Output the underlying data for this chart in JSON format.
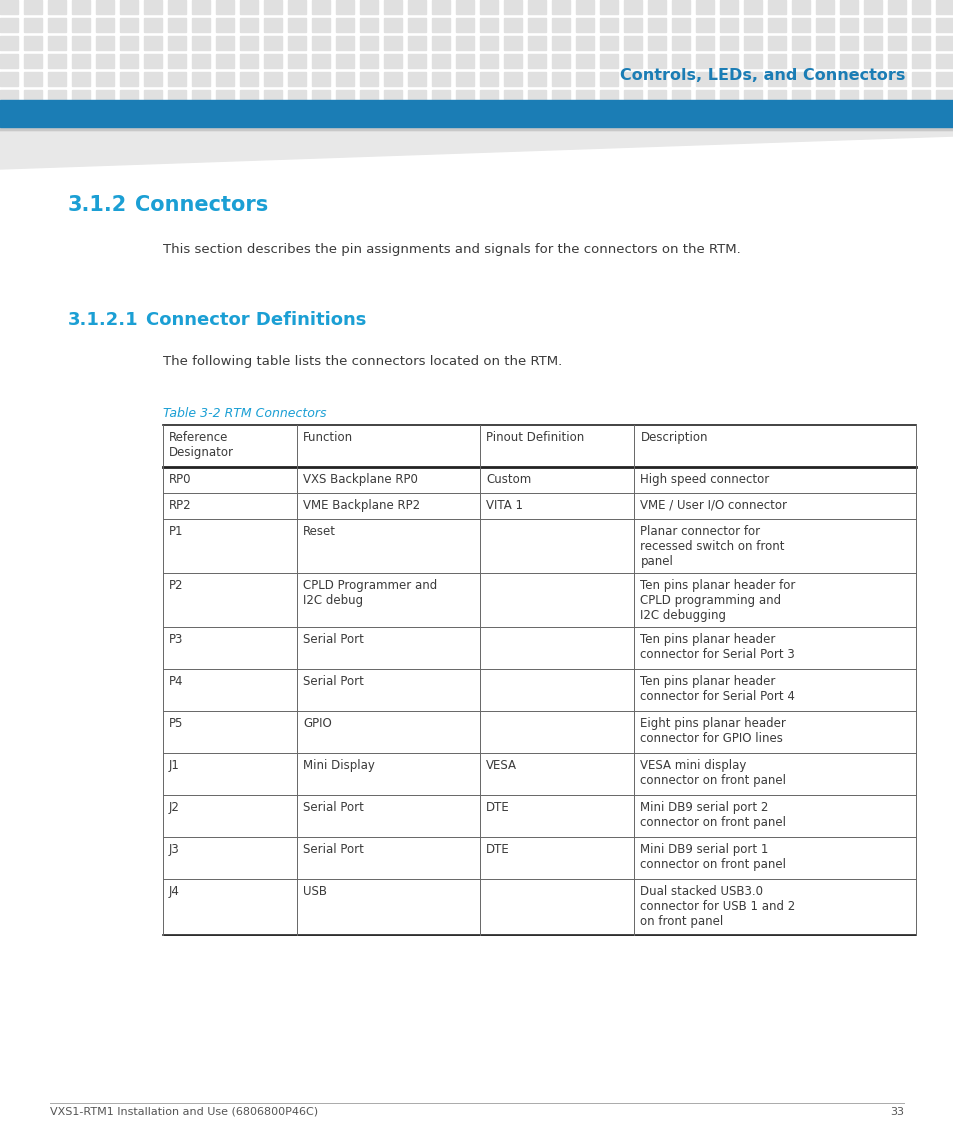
{
  "page_bg": "#ffffff",
  "tile_color": "#e0e0e0",
  "header_bar_color": "#1b7db5",
  "header_title": "Controls, LEDs, and Connectors",
  "header_title_color": "#1b7db5",
  "section_heading_color": "#1b9fd4",
  "body_text_color": "#3a3a3a",
  "table_caption_color": "#1b9fd4",
  "footer_text_color": "#555555",
  "footer_line_color": "#aaaaaa",
  "section_number": "3.1.2",
  "section_title": "Connectors",
  "section_body": "This section describes the pin assignments and signals for the connectors on the RTM.",
  "subsection_number": "3.1.2.1",
  "subsection_title": "Connector Definitions",
  "subsection_body": "The following table lists the connectors located on the RTM.",
  "table_caption": "Table 3-2 RTM Connectors",
  "table_headers": [
    "Reference\nDesignator",
    "Function",
    "Pinout Definition",
    "Description"
  ],
  "table_rows": [
    [
      "RP0",
      "VXS Backplane RP0",
      "Custom",
      "High speed connector"
    ],
    [
      "RP2",
      "VME Backplane RP2",
      "VITA 1",
      "VME / User I/O connector"
    ],
    [
      "P1",
      "Reset",
      "",
      "Planar connector for\nrecessed switch on front\npanel"
    ],
    [
      "P2",
      "CPLD Programmer and\nI2C debug",
      "",
      "Ten pins planar header for\nCPLD programming and\nI2C debugging"
    ],
    [
      "P3",
      "Serial Port",
      "",
      "Ten pins planar header\nconnector for Serial Port 3"
    ],
    [
      "P4",
      "Serial Port",
      "",
      "Ten pins planar header\nconnector for Serial Port 4"
    ],
    [
      "P5",
      "GPIO",
      "",
      "Eight pins planar header\nconnector for GPIO lines"
    ],
    [
      "J1",
      "Mini Display",
      "VESA",
      "VESA mini display\nconnector on front panel"
    ],
    [
      "J2",
      "Serial Port",
      "DTE",
      "Mini DB9 serial port 2\nconnector on front panel"
    ],
    [
      "J3",
      "Serial Port",
      "DTE",
      "Mini DB9 serial port 1\nconnector on front panel"
    ],
    [
      "J4",
      "USB",
      "",
      "Dual stacked USB3.0\nconnector for USB 1 and 2\non front panel"
    ]
  ],
  "footer_text": "VXS1-RTM1 Installation and Use (6806800P46C)",
  "footer_page": "33"
}
